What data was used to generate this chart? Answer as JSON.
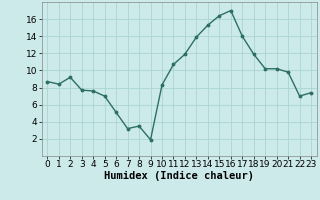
{
  "x": [
    0,
    1,
    2,
    3,
    4,
    5,
    6,
    7,
    8,
    9,
    10,
    11,
    12,
    13,
    14,
    15,
    16,
    17,
    18,
    19,
    20,
    21,
    22,
    23
  ],
  "y": [
    8.7,
    8.4,
    9.2,
    7.7,
    7.6,
    7.0,
    5.1,
    3.2,
    3.5,
    1.9,
    8.3,
    10.7,
    11.9,
    13.9,
    15.3,
    16.4,
    17.0,
    14.0,
    11.9,
    10.2,
    10.2,
    9.8,
    7.0,
    7.4
  ],
  "line_color": "#2d6f63",
  "marker": ".",
  "marker_size": 3.5,
  "bg_color": "#cceaea",
  "grid_color": "#aad4d4",
  "xlabel": "Humidex (Indice chaleur)",
  "xlim": [
    -0.5,
    23.5
  ],
  "ylim": [
    0,
    18
  ],
  "yticks": [
    2,
    4,
    6,
    8,
    10,
    12,
    14,
    16
  ],
  "xticks": [
    0,
    1,
    2,
    3,
    4,
    5,
    6,
    7,
    8,
    9,
    10,
    11,
    12,
    13,
    14,
    15,
    16,
    17,
    18,
    19,
    20,
    21,
    22,
    23
  ],
  "xlabel_fontsize": 7.5,
  "tick_fontsize": 6.5
}
